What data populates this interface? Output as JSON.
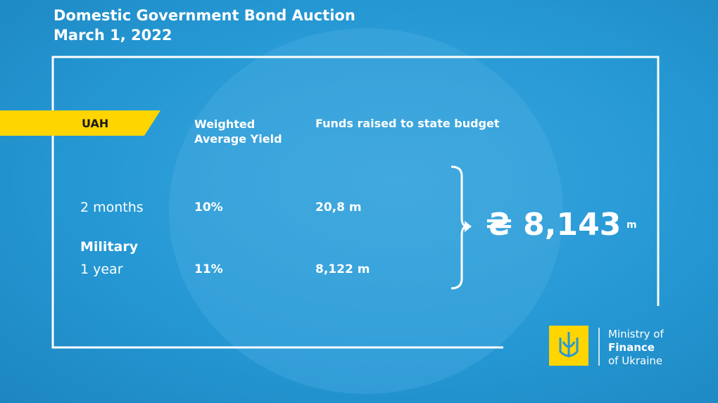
{
  "header": {
    "title": "Domestic Government Bond Auction",
    "date": "March 1, 2022"
  },
  "table": {
    "currency": "UAH",
    "columns": [
      "Weighted Average Yield",
      "Funds raised to state budget"
    ],
    "rows": [
      {
        "label": "2 months",
        "yield": "10%",
        "funds": "20,8 m"
      },
      {
        "group": "Military",
        "label": "1 year",
        "yield": "11%",
        "funds": "8,122 m"
      }
    ]
  },
  "total": {
    "amount": "₴ 8,143",
    "unit": "m"
  },
  "logo": {
    "line1": "Ministry of",
    "line2": "Finance",
    "line3": "of Ukraine"
  }
}
